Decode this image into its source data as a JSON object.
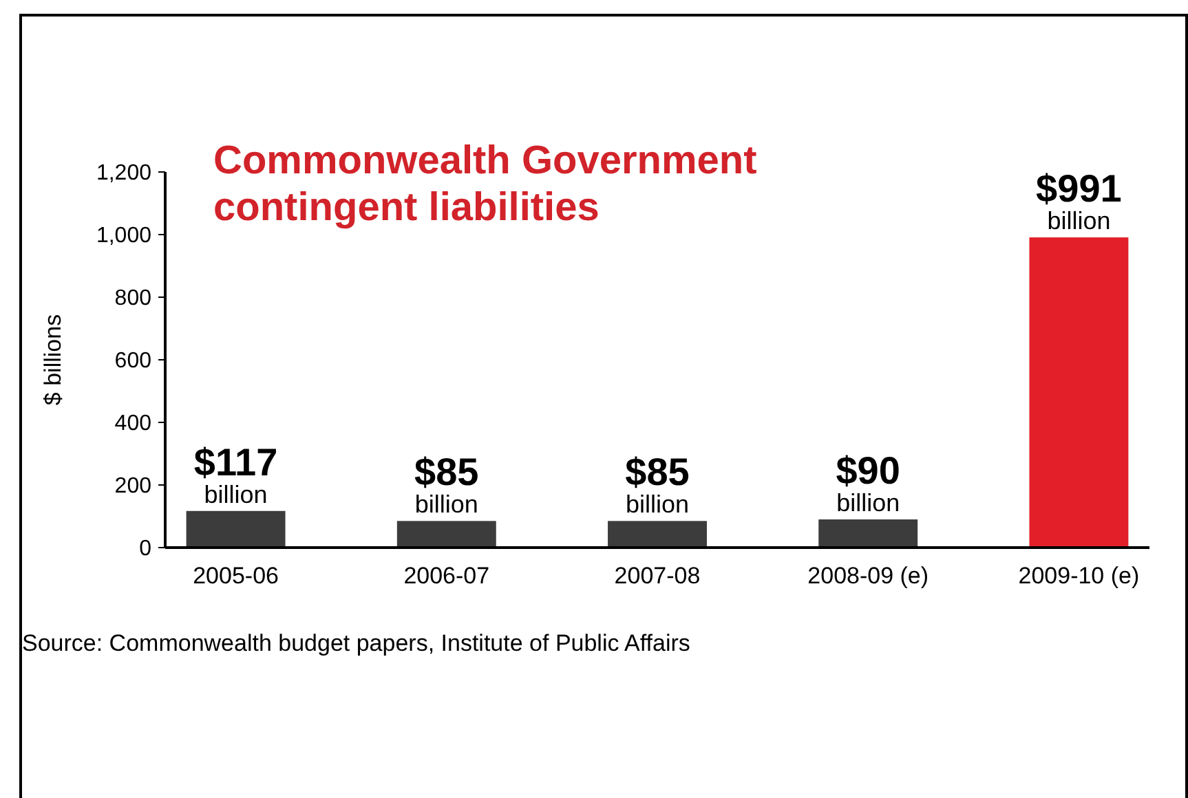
{
  "chart_data": {
    "type": "bar",
    "title": "Commonwealth Government contingent liabilities",
    "ylabel": "$ billions",
    "categories": [
      "2005-06",
      "2006-07",
      "2007-08",
      "2008-09 (e)",
      "2009-10 (e)"
    ],
    "values": [
      117,
      85,
      85,
      90,
      991
    ],
    "colors": [
      "#3c3c3c",
      "#3c3c3c",
      "#3c3c3c",
      "#3c3c3c",
      "#e3202a"
    ],
    "value_labels": [
      "$117 billion",
      "$85 billion",
      "$85 billion",
      "$90 billion",
      "$991 billion"
    ],
    "ylim": [
      0,
      1200
    ],
    "yticks": [
      0,
      200,
      400,
      600,
      800,
      {
        "value": 1000,
        "label": "1,000"
      },
      {
        "value": 1200,
        "label": "1,200"
      }
    ],
    "grid": false,
    "annotations": [
      "Source: Commonwealth budget papers, Institute of Public Affairs"
    ]
  }
}
